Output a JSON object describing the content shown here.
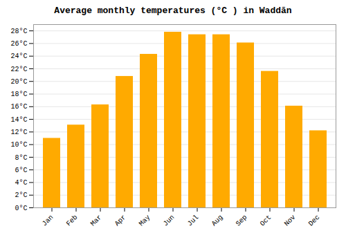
{
  "chart_data": {
    "type": "bar",
    "title": "Average monthly temperatures (°C ) in Waddān",
    "categories": [
      "Jan",
      "Feb",
      "Mar",
      "Apr",
      "May",
      "Jun",
      "Jul",
      "Aug",
      "Sep",
      "Oct",
      "Nov",
      "Dec"
    ],
    "values": [
      11.0,
      13.1,
      16.3,
      20.8,
      24.3,
      27.8,
      27.4,
      27.4,
      26.1,
      21.6,
      16.1,
      12.2
    ],
    "color": "#FFAA00",
    "ylim": [
      0,
      29
    ],
    "yticks": [
      {
        "value": 0,
        "label": "0°C"
      },
      {
        "value": 2,
        "label": "2°C"
      },
      {
        "value": 4,
        "label": "4°C"
      },
      {
        "value": 6,
        "label": "6°C"
      },
      {
        "value": 8,
        "label": "8°C"
      },
      {
        "value": 10,
        "label": "10°C"
      },
      {
        "value": 12,
        "label": "12°C"
      },
      {
        "value": 14,
        "label": "14°C"
      },
      {
        "value": 16,
        "label": "16°C"
      },
      {
        "value": 18,
        "label": "18°C"
      },
      {
        "value": 20,
        "label": "20°C"
      },
      {
        "value": 22,
        "label": "22°C"
      },
      {
        "value": 24,
        "label": "24°C"
      },
      {
        "value": 26,
        "label": "26°C"
      },
      {
        "value": 28,
        "label": "28°C"
      }
    ],
    "grid": true
  }
}
